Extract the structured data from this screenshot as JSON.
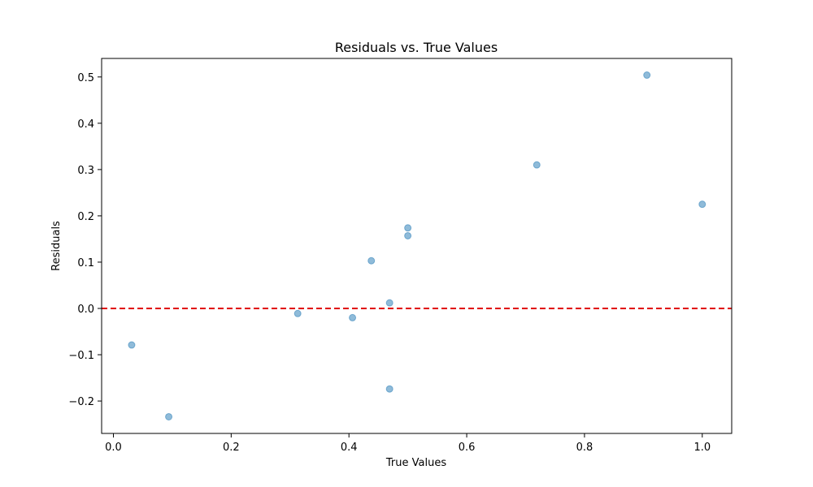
{
  "chart_data": {
    "type": "scatter",
    "title": "Residuals vs. True Values",
    "xlabel": "True Values",
    "ylabel": "Residuals",
    "xlim": [
      -0.02,
      1.05
    ],
    "ylim": [
      -0.27,
      0.54
    ],
    "xticks": [
      0.0,
      0.2,
      0.4,
      0.6,
      0.8,
      1.0
    ],
    "xtick_labels": [
      "0.0",
      "0.2",
      "0.4",
      "0.6",
      "0.8",
      "1.0"
    ],
    "yticks": [
      -0.2,
      -0.1,
      0.0,
      0.1,
      0.2,
      0.3,
      0.4,
      0.5
    ],
    "ytick_labels": [
      "−0.2",
      "−0.1",
      "0.0",
      "0.1",
      "0.2",
      "0.3",
      "0.4",
      "0.5"
    ],
    "grid": false,
    "reference_line": {
      "y": 0.0,
      "color": "#e00000",
      "style": "dashed"
    },
    "marker_color": "#1f77b4",
    "points": [
      {
        "x": 0.031,
        "y": -0.079
      },
      {
        "x": 0.094,
        "y": -0.234
      },
      {
        "x": 0.313,
        "y": -0.011
      },
      {
        "x": 0.406,
        "y": -0.02
      },
      {
        "x": 0.438,
        "y": 0.103
      },
      {
        "x": 0.469,
        "y": 0.012
      },
      {
        "x": 0.469,
        "y": -0.174
      },
      {
        "x": 0.5,
        "y": 0.174
      },
      {
        "x": 0.5,
        "y": 0.157
      },
      {
        "x": 0.719,
        "y": 0.31
      },
      {
        "x": 0.906,
        "y": 0.504
      },
      {
        "x": 1.0,
        "y": 0.225
      }
    ]
  }
}
